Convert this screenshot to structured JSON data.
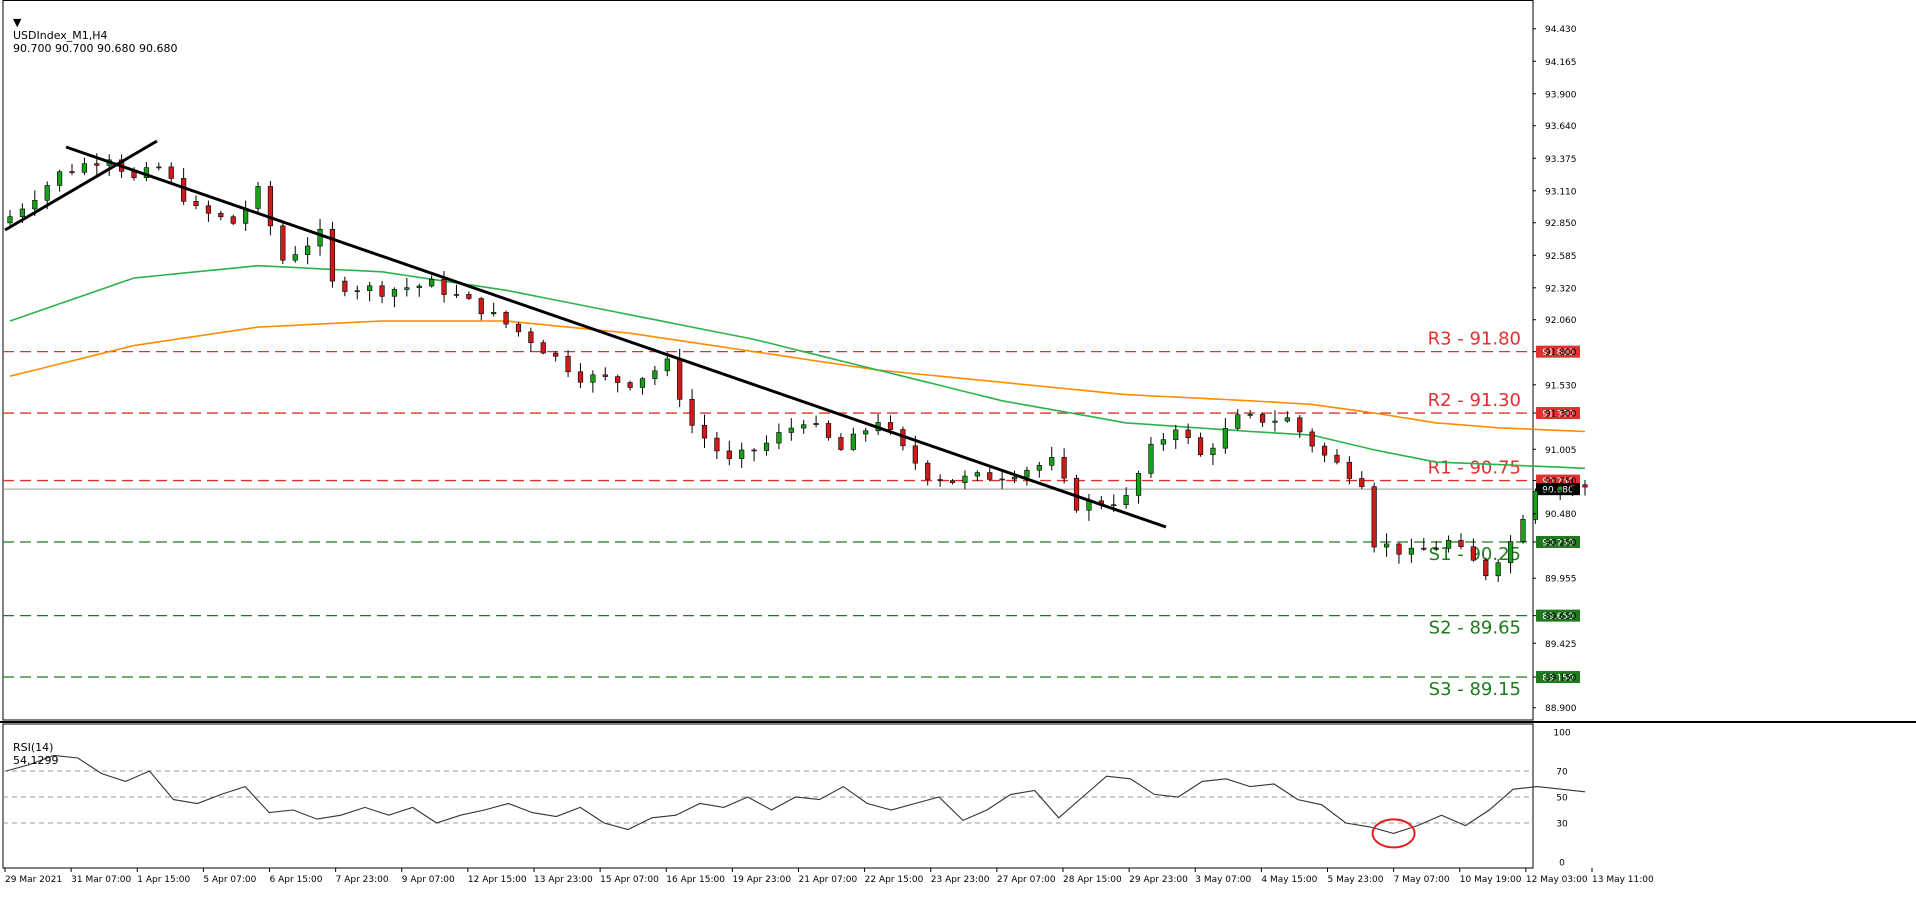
{
  "header": {
    "symbol": "USDIndex_M1,H4",
    "ohlc": "90.700 90.700 90.680 90.680"
  },
  "rsi_header": {
    "label": "RSI(14)",
    "value": "54.1299"
  },
  "colors": {
    "bull": "#18a018",
    "bear": "#d01a1a",
    "ma_fast": "#2bb24c",
    "ma_slow": "#ff8c00",
    "resistance": "#e03030",
    "support": "#1f7a1f",
    "trendline": "#000000",
    "rsi_line": "#333333",
    "rsi_marker": "#e02020"
  },
  "chart_data": [
    {
      "type": "candlestick",
      "title": "USDIndex_M1,H4",
      "ylim": [
        88.8,
        94.55
      ],
      "y_ticks": [
        "94.430",
        "94.165",
        "93.900",
        "93.640",
        "93.375",
        "93.110",
        "92.850",
        "92.585",
        "92.320",
        "92.060",
        "91.800",
        "91.530",
        "91.300",
        "91.005",
        "90.750",
        "90.680",
        "90.480",
        "90.250",
        "89.955",
        "89.650",
        "89.425",
        "89.150",
        "88.900"
      ],
      "x_ticks": [
        "29 Mar 2021",
        "31 Mar 07:00",
        "1 Apr 15:00",
        "5 Apr 07:00",
        "6 Apr 15:00",
        "7 Apr 23:00",
        "9 Apr 07:00",
        "12 Apr 15:00",
        "13 Apr 23:00",
        "15 Apr 07:00",
        "16 Apr 15:00",
        "19 Apr 23:00",
        "21 Apr 07:00",
        "22 Apr 15:00",
        "23 Apr 23:00",
        "27 Apr 07:00",
        "28 Apr 15:00",
        "29 Apr 23:00",
        "3 May 07:00",
        "4 May 15:00",
        "5 May 23:00",
        "7 May 07:00",
        "10 May 19:00",
        "12 May 03:00",
        "13 May 11:00"
      ],
      "current_price": 90.68,
      "levels": [
        {
          "name": "R3",
          "label": "R3 - 91.80",
          "value": 91.8,
          "tag": "91.800",
          "kind": "resistance"
        },
        {
          "name": "R2",
          "label": "R2 - 91.30",
          "value": 91.3,
          "tag": "91.300",
          "kind": "resistance"
        },
        {
          "name": "R1",
          "label": "R1 - 90.75",
          "value": 90.75,
          "tag": "90.750",
          "kind": "resistance"
        },
        {
          "name": "S1",
          "label": "S1 - 90.25",
          "value": 90.25,
          "tag": "90.250",
          "kind": "support"
        },
        {
          "name": "S2",
          "label": "S2 - 89.65",
          "value": 89.65,
          "tag": "89.650",
          "kind": "support"
        },
        {
          "name": "S3",
          "label": "S3 - 89.15",
          "value": 89.15,
          "tag": "89.150",
          "kind": "support"
        }
      ],
      "close_path": [
        [
          0,
          92.9
        ],
        [
          4,
          93.25
        ],
        [
          8,
          93.4
        ],
        [
          10,
          93.2
        ],
        [
          12,
          93.3
        ],
        [
          15,
          92.95
        ],
        [
          18,
          92.85
        ],
        [
          20,
          93.1
        ],
        [
          22,
          92.55
        ],
        [
          25,
          92.75
        ],
        [
          26,
          92.35
        ],
        [
          30,
          92.3
        ],
        [
          34,
          92.35
        ],
        [
          38,
          92.15
        ],
        [
          42,
          91.9
        ],
        [
          46,
          91.6
        ],
        [
          50,
          91.55
        ],
        [
          53,
          91.7
        ],
        [
          55,
          91.2
        ],
        [
          58,
          90.9
        ],
        [
          61,
          91.05
        ],
        [
          64,
          91.25
        ],
        [
          67,
          91.0
        ],
        [
          70,
          91.25
        ],
        [
          72,
          91.0
        ],
        [
          74,
          90.8
        ],
        [
          76,
          90.75
        ],
        [
          80,
          90.8
        ],
        [
          84,
          90.9
        ],
        [
          86,
          90.55
        ],
        [
          90,
          90.6
        ],
        [
          92,
          91.0
        ],
        [
          94,
          91.2
        ],
        [
          96,
          90.95
        ],
        [
          99,
          91.25
        ],
        [
          103,
          91.25
        ],
        [
          106,
          90.95
        ],
        [
          109,
          90.75
        ],
        [
          110,
          90.25
        ],
        [
          113,
          90.15
        ],
        [
          116,
          90.25
        ],
        [
          119,
          90.0
        ],
        [
          121,
          90.25
        ],
        [
          123,
          90.7
        ],
        [
          126,
          90.72
        ],
        [
          127,
          90.68
        ]
      ],
      "ma_fast": [
        [
          0,
          92.05
        ],
        [
          10,
          92.4
        ],
        [
          20,
          92.5
        ],
        [
          30,
          92.45
        ],
        [
          40,
          92.3
        ],
        [
          50,
          92.1
        ],
        [
          60,
          91.9
        ],
        [
          70,
          91.65
        ],
        [
          80,
          91.4
        ],
        [
          90,
          91.22
        ],
        [
          100,
          91.15
        ],
        [
          105,
          91.12
        ],
        [
          110,
          91.0
        ],
        [
          115,
          90.9
        ],
        [
          120,
          90.88
        ],
        [
          127,
          90.85
        ]
      ],
      "ma_slow": [
        [
          0,
          91.6
        ],
        [
          10,
          91.85
        ],
        [
          20,
          92.0
        ],
        [
          30,
          92.05
        ],
        [
          40,
          92.05
        ],
        [
          50,
          91.95
        ],
        [
          60,
          91.8
        ],
        [
          70,
          91.65
        ],
        [
          80,
          91.55
        ],
        [
          90,
          91.45
        ],
        [
          100,
          91.4
        ],
        [
          105,
          91.37
        ],
        [
          110,
          91.3
        ],
        [
          115,
          91.22
        ],
        [
          120,
          91.18
        ],
        [
          127,
          91.15
        ]
      ]
    },
    {
      "type": "line",
      "title": "RSI(14)",
      "ylim": [
        0,
        100
      ],
      "y_ticks": [
        "100",
        "70",
        "50",
        "30",
        "0"
      ],
      "levels": [
        70,
        50,
        30
      ],
      "values": [
        70,
        75,
        82,
        80,
        68,
        62,
        70,
        48,
        45,
        52,
        58,
        38,
        40,
        33,
        36,
        42,
        36,
        42,
        30,
        36,
        40,
        45,
        38,
        35,
        42,
        30,
        25,
        34,
        36,
        45,
        42,
        50,
        40,
        50,
        48,
        58,
        45,
        40,
        45,
        50,
        32,
        40,
        52,
        55,
        34,
        50,
        66,
        64,
        52,
        50,
        62,
        64,
        58,
        60,
        48,
        44,
        30,
        27,
        22,
        28,
        36,
        28,
        40,
        56,
        58,
        56,
        54
      ],
      "marker_index": 58
    }
  ]
}
